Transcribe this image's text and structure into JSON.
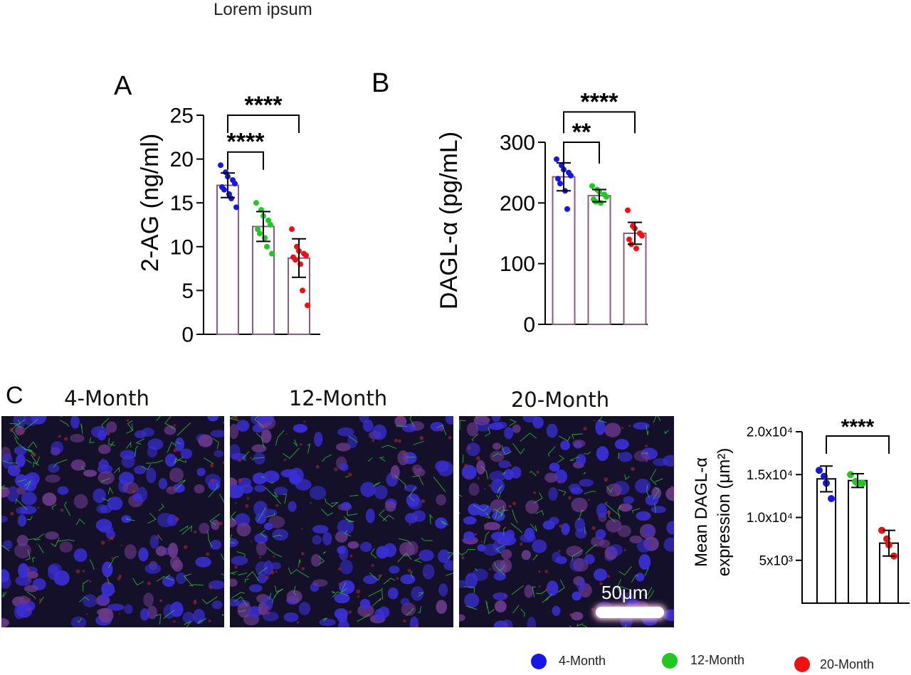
{
  "page": {
    "title": "Lorem ipsum"
  },
  "panels": {
    "a": "A",
    "b": "B",
    "c": "C"
  },
  "images": [
    {
      "title": "4-Month"
    },
    {
      "title": "12-Month"
    },
    {
      "title": "20-Month",
      "scalebar": "50μm"
    }
  ],
  "legend": [
    {
      "label": "4-Month",
      "color": "#1616e6"
    },
    {
      "label": "12-Month",
      "color": "#22c822"
    },
    {
      "label": "20-Month",
      "color": "#ee1111"
    }
  ],
  "colors": {
    "bar_a_b": "#8a5a86",
    "bar_c": "#000000"
  },
  "chart_data": [
    {
      "type": "bar",
      "panel": "A",
      "ylabel": "2-AG (ng/ml)",
      "ylim": [
        0,
        25
      ],
      "yticks": [
        0,
        5,
        10,
        15,
        20,
        25
      ],
      "ytick_labels": [
        "0",
        "5",
        "10",
        "15",
        "20",
        "25"
      ],
      "categories": [
        "4-Month",
        "12-Month",
        "20-Month"
      ],
      "values": [
        17.0,
        12.3,
        8.7
      ],
      "errors": [
        1.4,
        1.7,
        2.2
      ],
      "points": [
        [
          19.3,
          18.5,
          18.0,
          17.6,
          17.2,
          16.8,
          16.5,
          16.0,
          15.5,
          14.5
        ],
        [
          15.0,
          14.2,
          13.5,
          13.0,
          12.5,
          12.0,
          11.5,
          11.0,
          10.0,
          9.2
        ],
        [
          12.0,
          10.0,
          9.5,
          9.2,
          9.0,
          8.8,
          8.5,
          8.0,
          5.0,
          3.3
        ]
      ],
      "significance": [
        {
          "from": 0,
          "to": 1,
          "label": "****",
          "y": 20.8
        },
        {
          "from": 0,
          "to": 2,
          "label": "****",
          "y": 25.0
        }
      ]
    },
    {
      "type": "bar",
      "panel": "B",
      "ylabel": "DAGL-α (pg/mL)",
      "ylim": [
        0,
        300
      ],
      "yticks": [
        0,
        100,
        200,
        300
      ],
      "ytick_labels": [
        "0",
        "100",
        "200",
        "300"
      ],
      "categories": [
        "4-Month",
        "12-Month",
        "20-Month"
      ],
      "values": [
        243,
        212,
        150
      ],
      "errors": [
        23,
        10,
        18
      ],
      "points": [
        [
          272,
          262,
          255,
          250,
          245,
          240,
          232,
          220,
          190
        ],
        [
          228,
          222,
          218,
          214,
          210,
          206,
          202,
          200
        ],
        [
          188,
          162,
          158,
          150,
          146,
          140,
          132,
          125
        ]
      ],
      "significance": [
        {
          "from": 0,
          "to": 1,
          "label": "**",
          "y": 300
        },
        {
          "from": 0,
          "to": 2,
          "label": "****",
          "y": 350
        }
      ]
    },
    {
      "type": "bar",
      "panel": "C",
      "ylabel": [
        "Mean DAGL-α",
        "expression (μm²)"
      ],
      "ylim": [
        0,
        20000
      ],
      "yticks": [
        5000,
        10000,
        15000,
        20000
      ],
      "ytick_labels": [
        "5x10³",
        "1.0x10⁴",
        "1.5x10⁴",
        "2.0x10⁴"
      ],
      "categories": [
        "4-Month",
        "12-Month",
        "20-Month"
      ],
      "values": [
        14500,
        14300,
        7000
      ],
      "errors": [
        1500,
        800,
        1500
      ],
      "points": [
        [
          15500,
          14800,
          14000,
          12200
        ],
        [
          15000,
          14200,
          14000,
          14000
        ],
        [
          8500,
          7500,
          6800,
          5500
        ]
      ],
      "significance": [
        {
          "from": 0,
          "to": 2,
          "label": "****",
          "y": 19500
        }
      ]
    }
  ]
}
